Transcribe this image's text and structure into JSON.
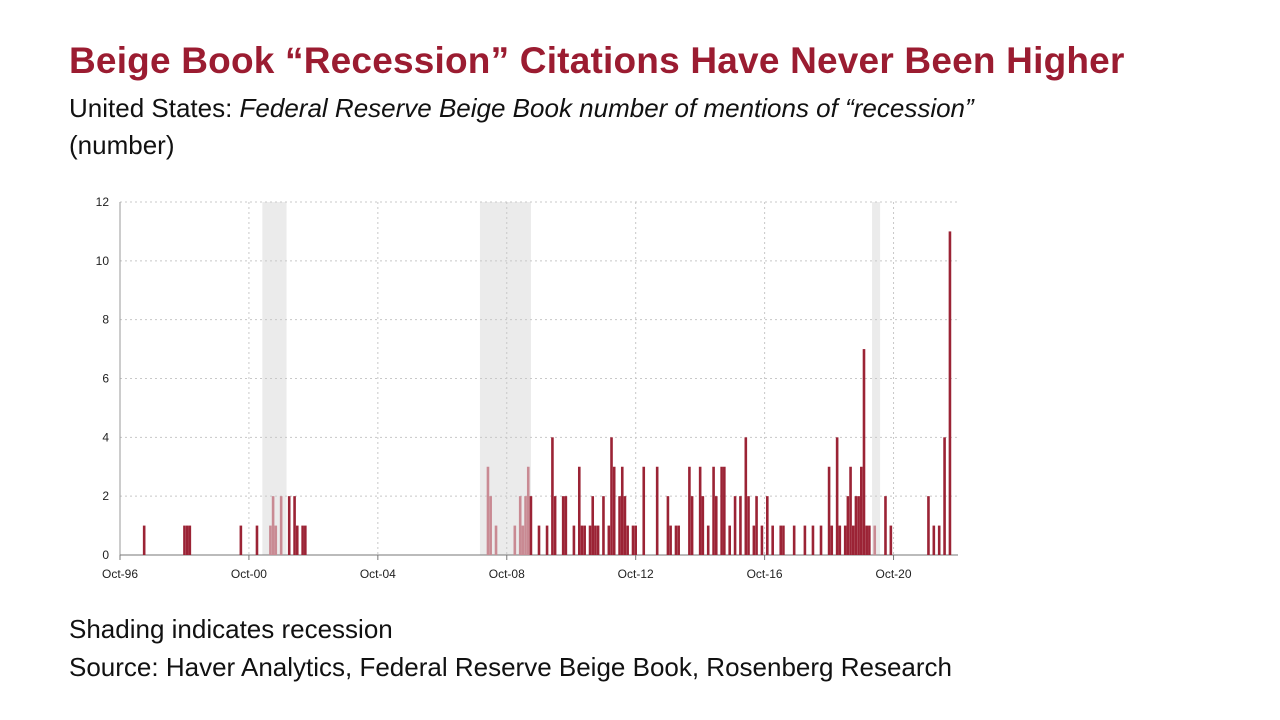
{
  "title": "Beige Book “Recession” Citations Have Never Been Higher",
  "subtitle": {
    "prefix": "United States: ",
    "italic": "Federal Reserve Beige Book number of mentions of “recession”",
    "unit": "(number)"
  },
  "footnote": "Shading indicates recession",
  "source": "Source: Haver Analytics, Federal Reserve Beige Book, Rosenberg Research",
  "colors": {
    "bar": "#9b2335",
    "bar_in_recession": "#c98a93",
    "recession_shade": "#ebebeb",
    "title": "#9b1c31"
  },
  "chart_data": {
    "type": "bar",
    "xlabel": "",
    "ylabel": "",
    "x_range": [
      "1996-10",
      "2022-10"
    ],
    "ylim": [
      0,
      12
    ],
    "yticks": [
      "0",
      "2",
      "4",
      "6",
      "8",
      "10",
      "12"
    ],
    "xticks": [
      {
        "label": "Oct-96",
        "date": "1996-10"
      },
      {
        "label": "Oct-00",
        "date": "2000-10"
      },
      {
        "label": "Oct-04",
        "date": "2004-10"
      },
      {
        "label": "Oct-08",
        "date": "2008-10"
      },
      {
        "label": "Oct-12",
        "date": "2012-10"
      },
      {
        "label": "Oct-16",
        "date": "2016-10"
      },
      {
        "label": "Oct-20",
        "date": "2020-10"
      }
    ],
    "grid": true,
    "recessions": [
      {
        "start": "2001-03",
        "end": "2001-11"
      },
      {
        "start": "2007-12",
        "end": "2009-06"
      },
      {
        "start": "2020-02",
        "end": "2020-04"
      }
    ],
    "series": [
      {
        "points": [
          {
            "date": "1997-07",
            "value": 1
          },
          {
            "date": "1998-10",
            "value": 1
          },
          {
            "date": "1998-11",
            "value": 1
          },
          {
            "date": "1998-12",
            "value": 1
          },
          {
            "date": "2000-07",
            "value": 1
          },
          {
            "date": "2001-01",
            "value": 1
          },
          {
            "date": "2001-06",
            "value": 1
          },
          {
            "date": "2001-07",
            "value": 2
          },
          {
            "date": "2001-08",
            "value": 1
          },
          {
            "date": "2001-10",
            "value": 2
          },
          {
            "date": "2002-01",
            "value": 2
          },
          {
            "date": "2002-03",
            "value": 2
          },
          {
            "date": "2002-04",
            "value": 1
          },
          {
            "date": "2002-06",
            "value": 1
          },
          {
            "date": "2002-07",
            "value": 1
          },
          {
            "date": "2008-03",
            "value": 3
          },
          {
            "date": "2008-04",
            "value": 2
          },
          {
            "date": "2008-06",
            "value": 1
          },
          {
            "date": "2009-01",
            "value": 1
          },
          {
            "date": "2009-03",
            "value": 2
          },
          {
            "date": "2009-04",
            "value": 1
          },
          {
            "date": "2009-05",
            "value": 2
          },
          {
            "date": "2009-06",
            "value": 3
          },
          {
            "date": "2009-07",
            "value": 2
          },
          {
            "date": "2009-10",
            "value": 1
          },
          {
            "date": "2010-01",
            "value": 1
          },
          {
            "date": "2010-03",
            "value": 4
          },
          {
            "date": "2010-04",
            "value": 2
          },
          {
            "date": "2010-07",
            "value": 2
          },
          {
            "date": "2010-08",
            "value": 2
          },
          {
            "date": "2010-11",
            "value": 1
          },
          {
            "date": "2011-01",
            "value": 3
          },
          {
            "date": "2011-02",
            "value": 1
          },
          {
            "date": "2011-03",
            "value": 1
          },
          {
            "date": "2011-05",
            "value": 1
          },
          {
            "date": "2011-06",
            "value": 2
          },
          {
            "date": "2011-07",
            "value": 1
          },
          {
            "date": "2011-08",
            "value": 1
          },
          {
            "date": "2011-10",
            "value": 2
          },
          {
            "date": "2011-12",
            "value": 1
          },
          {
            "date": "2012-01",
            "value": 4
          },
          {
            "date": "2012-02",
            "value": 3
          },
          {
            "date": "2012-04",
            "value": 2
          },
          {
            "date": "2012-05",
            "value": 3
          },
          {
            "date": "2012-06",
            "value": 2
          },
          {
            "date": "2012-07",
            "value": 1
          },
          {
            "date": "2012-09",
            "value": 1
          },
          {
            "date": "2012-10",
            "value": 1
          },
          {
            "date": "2013-01",
            "value": 3
          },
          {
            "date": "2013-06",
            "value": 3
          },
          {
            "date": "2013-10",
            "value": 2
          },
          {
            "date": "2013-11",
            "value": 1
          },
          {
            "date": "2014-01",
            "value": 1
          },
          {
            "date": "2014-02",
            "value": 1
          },
          {
            "date": "2014-06",
            "value": 3
          },
          {
            "date": "2014-07",
            "value": 2
          },
          {
            "date": "2014-10",
            "value": 3
          },
          {
            "date": "2014-11",
            "value": 2
          },
          {
            "date": "2015-01",
            "value": 1
          },
          {
            "date": "2015-03",
            "value": 3
          },
          {
            "date": "2015-04",
            "value": 2
          },
          {
            "date": "2015-06",
            "value": 3
          },
          {
            "date": "2015-07",
            "value": 3
          },
          {
            "date": "2015-09",
            "value": 1
          },
          {
            "date": "2015-11",
            "value": 2
          },
          {
            "date": "2016-01",
            "value": 2
          },
          {
            "date": "2016-03",
            "value": 4
          },
          {
            "date": "2016-04",
            "value": 2
          },
          {
            "date": "2016-06",
            "value": 1
          },
          {
            "date": "2016-07",
            "value": 2
          },
          {
            "date": "2016-09",
            "value": 1
          },
          {
            "date": "2016-11",
            "value": 2
          },
          {
            "date": "2017-01",
            "value": 1
          },
          {
            "date": "2017-04",
            "value": 1
          },
          {
            "date": "2017-05",
            "value": 1
          },
          {
            "date": "2017-09",
            "value": 1
          },
          {
            "date": "2018-01",
            "value": 1
          },
          {
            "date": "2018-04",
            "value": 1
          },
          {
            "date": "2018-07",
            "value": 1
          },
          {
            "date": "2018-10",
            "value": 3
          },
          {
            "date": "2018-11",
            "value": 1
          },
          {
            "date": "2019-01",
            "value": 4
          },
          {
            "date": "2019-02",
            "value": 1
          },
          {
            "date": "2019-04",
            "value": 1
          },
          {
            "date": "2019-05",
            "value": 2
          },
          {
            "date": "2019-06",
            "value": 3
          },
          {
            "date": "2019-07",
            "value": 1
          },
          {
            "date": "2019-08",
            "value": 2
          },
          {
            "date": "2019-09",
            "value": 2
          },
          {
            "date": "2019-10",
            "value": 3
          },
          {
            "date": "2019-11",
            "value": 7
          },
          {
            "date": "2019-12",
            "value": 1
          },
          {
            "date": "2020-01",
            "value": 1
          },
          {
            "date": "2020-03",
            "value": 1
          },
          {
            "date": "2020-07",
            "value": 2
          },
          {
            "date": "2020-09",
            "value": 1
          },
          {
            "date": "2021-11",
            "value": 2
          },
          {
            "date": "2022-01",
            "value": 1
          },
          {
            "date": "2022-03",
            "value": 1
          },
          {
            "date": "2022-05",
            "value": 4
          },
          {
            "date": "2022-07",
            "value": 11
          }
        ]
      }
    ]
  }
}
